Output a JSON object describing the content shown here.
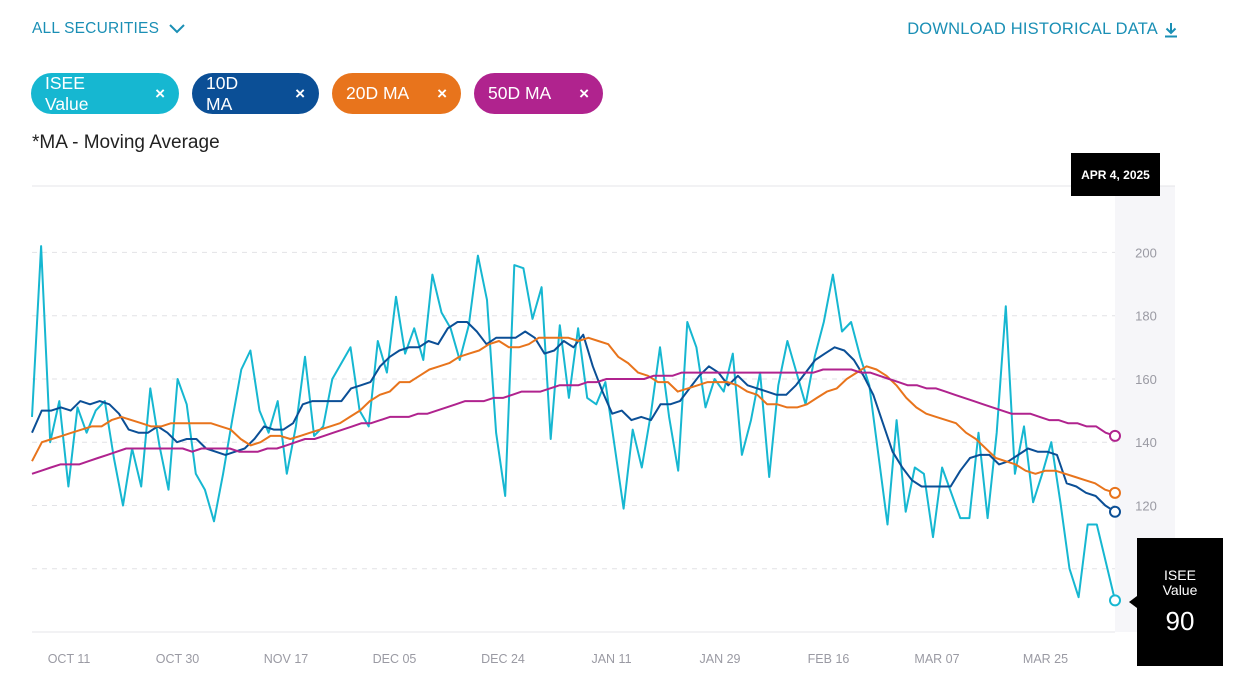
{
  "header": {
    "securities_label": "ALL SECURITIES",
    "download_label": "DOWNLOAD HISTORICAL DATA"
  },
  "chips": [
    {
      "label": "ISEE Value",
      "color": "#16b7d1",
      "close": "×"
    },
    {
      "label": "10D MA",
      "color": "#0b4f96",
      "close": "×"
    },
    {
      "label": "20D MA",
      "color": "#e8741c",
      "close": "×"
    },
    {
      "label": "50D MA",
      "color": "#b0238e",
      "close": "×"
    }
  ],
  "note": "*MA - Moving Average",
  "tooltip": {
    "date": "APR 4, 2025",
    "series_label": "ISEE Value",
    "value": "90"
  },
  "chart_data": {
    "type": "line",
    "x_ticks": [
      "OCT 11",
      "OCT 30",
      "NOV 17",
      "DEC 05",
      "DEC 24",
      "JAN 11",
      "JAN 29",
      "FEB 16",
      "MAR 07",
      "MAR 25"
    ],
    "y_ticks": [
      120,
      140,
      160,
      180,
      200
    ],
    "ylim": [
      80,
      221
    ],
    "grid": true,
    "series": [
      {
        "name": "ISEE Value",
        "color": "#16b7d1",
        "values": [
          148,
          202,
          140,
          153,
          126,
          151,
          143,
          150,
          153,
          135,
          120,
          138,
          126,
          157,
          139,
          125,
          160,
          152,
          130,
          125,
          115,
          130,
          147,
          163,
          169,
          150,
          143,
          153,
          130,
          145,
          167,
          142,
          145,
          160,
          165,
          170,
          150,
          145,
          172,
          162,
          186,
          168,
          176,
          166,
          193,
          181,
          176,
          166,
          177,
          199,
          185,
          143,
          123,
          196,
          195,
          179,
          189,
          141,
          177,
          154,
          176,
          154,
          152,
          159,
          139,
          119,
          144,
          132,
          149,
          170,
          148,
          131,
          178,
          170,
          151,
          160,
          156,
          168,
          136,
          147,
          162,
          129,
          158,
          172,
          162,
          152,
          167,
          178,
          193,
          175,
          178,
          167,
          158,
          136,
          114,
          147,
          118,
          132,
          130,
          110,
          132,
          124,
          116,
          116,
          143,
          116,
          143,
          183,
          130,
          145,
          121,
          130,
          140,
          121,
          100,
          91,
          114,
          114,
          102,
          90
        ]
      },
      {
        "name": "10D MA",
        "color": "#0b4f96",
        "values": [
          143,
          150,
          150,
          151,
          150,
          153,
          152,
          153,
          152,
          149,
          144,
          143,
          143,
          145,
          143,
          140,
          141,
          141,
          138,
          137,
          136,
          137,
          138,
          141,
          145,
          144,
          144,
          146,
          152,
          153,
          153,
          153,
          153,
          157,
          158,
          159,
          164,
          167,
          169,
          170,
          170,
          172,
          171,
          176,
          178,
          178,
          175,
          171,
          173,
          173,
          173,
          175,
          173,
          168,
          169,
          172,
          170,
          174,
          164,
          156,
          149,
          150,
          147,
          148,
          147,
          152,
          152,
          153,
          157,
          161,
          164,
          162,
          158,
          161,
          158,
          157,
          156,
          155,
          155,
          158,
          162,
          166,
          168,
          170,
          169,
          166,
          161,
          155,
          146,
          137,
          132,
          128,
          126,
          126,
          126,
          126,
          131,
          135,
          136,
          136,
          133,
          134,
          136,
          138,
          137,
          137,
          136,
          127,
          126,
          124,
          123,
          120,
          118
        ]
      },
      {
        "name": "20D MA",
        "color": "#e8741c",
        "values": [
          134,
          140,
          141,
          142,
          143,
          144,
          145,
          145,
          147,
          148,
          147,
          146,
          145,
          145,
          146,
          146,
          146,
          146,
          146,
          145,
          144,
          141,
          139,
          140,
          142,
          142,
          141,
          142,
          143,
          144,
          145,
          146,
          148,
          150,
          153,
          155,
          156,
          159,
          159,
          161,
          163,
          164,
          165,
          167,
          168,
          169,
          171,
          172,
          170,
          170,
          171,
          173,
          173,
          173,
          173,
          172,
          173,
          172,
          171,
          167,
          165,
          162,
          161,
          159,
          159,
          156,
          157,
          158,
          159,
          159,
          159,
          158,
          156,
          155,
          152,
          152,
          151,
          151,
          152,
          154,
          156,
          157,
          160,
          162,
          164,
          163,
          161,
          158,
          154,
          151,
          149,
          148,
          147,
          146,
          143,
          141,
          138,
          135,
          134,
          133,
          131,
          130,
          131,
          131,
          130,
          129,
          128,
          127,
          125,
          124
        ]
      },
      {
        "name": "50D MA",
        "color": "#b0238e",
        "values": [
          130,
          131,
          132,
          133,
          133,
          133,
          134,
          135,
          136,
          137,
          138,
          138,
          138,
          138,
          138,
          138,
          138,
          137,
          138,
          138,
          138,
          138,
          137,
          137,
          137,
          138,
          138,
          139,
          140,
          141,
          141,
          142,
          143,
          144,
          145,
          146,
          146,
          147,
          148,
          148,
          148,
          149,
          149,
          150,
          151,
          152,
          153,
          153,
          153,
          154,
          154,
          155,
          156,
          156,
          156,
          157,
          158,
          158,
          158,
          159,
          159,
          160,
          160,
          160,
          160,
          160,
          161,
          161,
          161,
          162,
          162,
          162,
          162,
          162,
          162,
          162,
          162,
          162,
          162,
          162,
          162,
          162,
          162,
          162,
          163,
          163,
          163,
          163,
          162,
          162,
          161,
          160,
          159,
          158,
          158,
          157,
          157,
          156,
          155,
          154,
          153,
          152,
          151,
          150,
          149,
          149,
          149,
          148,
          147,
          147,
          146,
          146,
          145,
          145,
          143,
          142
        ]
      }
    ]
  }
}
